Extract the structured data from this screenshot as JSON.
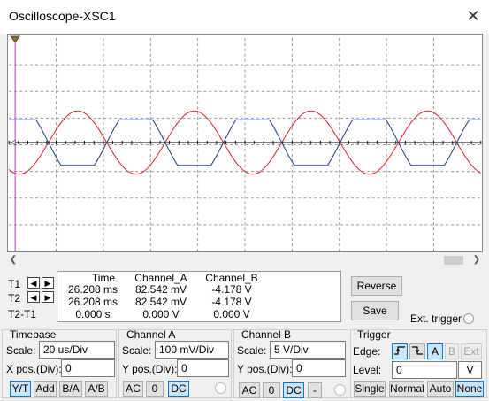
{
  "window": {
    "title": "Oscilloscope-XSC1",
    "close_glyph": "✕"
  },
  "cursors": {
    "headers": [
      "Time",
      "Channel_A",
      "Channel_B"
    ],
    "rows": [
      {
        "label": "T1",
        "time": "26.208 ms",
        "a": "82.542 mV",
        "b": "-4.178 V"
      },
      {
        "label": "T2",
        "time": "26.208 ms",
        "a": "82.542 mV",
        "b": "-4.178 V"
      },
      {
        "label": "T2-T1",
        "time": "0.000 s",
        "a": "0.000 V",
        "b": "0.000 V"
      }
    ]
  },
  "buttons": {
    "reverse": "Reverse",
    "save": "Save"
  },
  "ext_trigger": "Ext. trigger",
  "timebase": {
    "title": "Timebase",
    "scale_label": "Scale:",
    "scale": "20 us/Div",
    "xpos_label": "X pos.(Div):",
    "xpos": "0",
    "modes": [
      "Y/T",
      "Add",
      "B/A",
      "A/B"
    ]
  },
  "channel_a": {
    "title": "Channel A",
    "scale_label": "Scale:",
    "scale": "100 mV/Div",
    "ypos_label": "Y pos.(Div):",
    "ypos": "0",
    "coupling": [
      "AC",
      "0",
      "DC"
    ]
  },
  "channel_b": {
    "title": "Channel B",
    "scale_label": "Scale:",
    "scale": "5 V/Div",
    "ypos_label": "Y pos.(Div):",
    "ypos": "0",
    "coupling": [
      "AC",
      "0",
      "DC",
      "-"
    ]
  },
  "trigger": {
    "title": "Trigger",
    "edge_label": "Edge:",
    "edges": [
      "A",
      "B",
      "Ext"
    ],
    "level_label": "Level:",
    "level": "0",
    "unit": "V",
    "modes": [
      "Single",
      "Normal",
      "Auto",
      "None"
    ]
  },
  "colors": {
    "channel_a": "#e02020",
    "channel_b": "#1a3a8f",
    "cursor_marker": "#cc33cc"
  }
}
